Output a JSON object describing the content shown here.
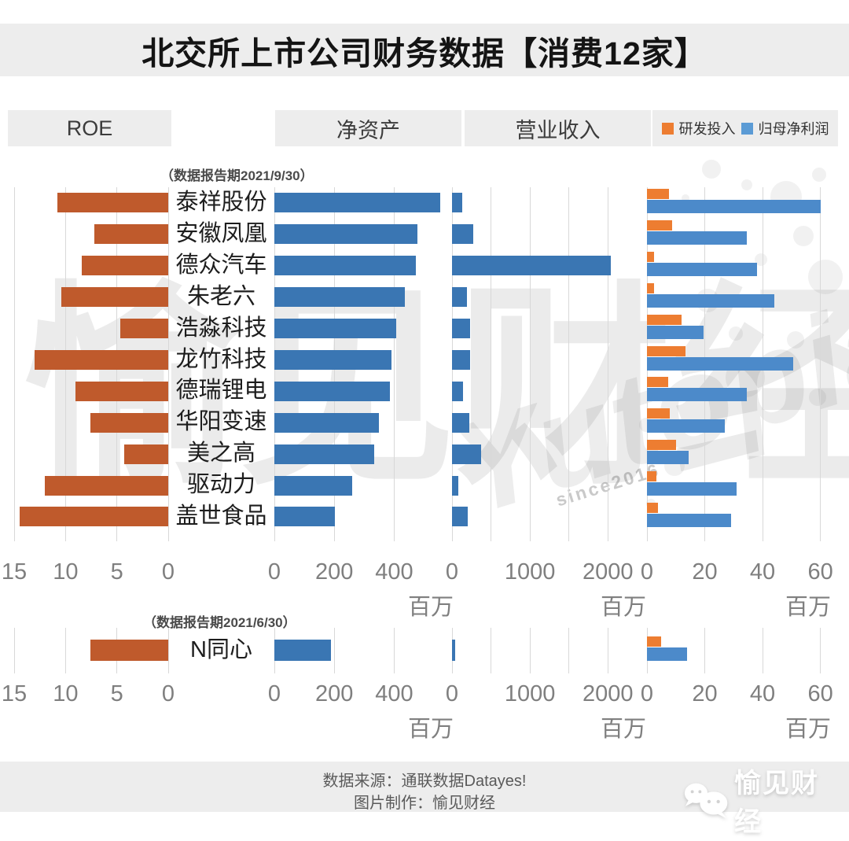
{
  "title": "北交所上市公司财务数据【消费12家】",
  "sections": {
    "roe": "ROE",
    "net_assets": "净资产",
    "revenue": "营业收入"
  },
  "legend": [
    {
      "label": "研发投入",
      "color": "#ed7d31"
    },
    {
      "label": "归母净利润",
      "color": "#5b9bd5"
    }
  ],
  "periods": {
    "main": "（数据报告期2021/9/30）",
    "secondary": "（数据报告期2021/6/30）"
  },
  "unit_label": "百万",
  "footer": {
    "line1": "数据来源：通联数据Datayes!",
    "line2": "图片制作：愉见财经"
  },
  "logo": {
    "text": "愉见财经",
    "icon": "wechat-chat-bubbles-icon"
  },
  "watermark": {
    "cn": "愉见财经",
    "en": "Yutopia",
    "since": "since2016"
  },
  "chart_data": {
    "type": "bar",
    "orientation": "horizontal",
    "unit": "百万",
    "grid": true,
    "panels": [
      {
        "id": "roe",
        "title": "ROE",
        "ticks": [
          15,
          10,
          5,
          0
        ],
        "grid_ticks": [
          15,
          10,
          5,
          0
        ],
        "reversed": true,
        "axis_max": 15
      },
      {
        "id": "net_assets",
        "title": "净资产",
        "ticks": [
          0,
          200,
          400
        ],
        "grid_ticks": [
          0,
          200,
          400
        ],
        "reversed": false,
        "axis_max": 580
      },
      {
        "id": "revenue",
        "title": "营业收入",
        "ticks": [
          0,
          1000,
          2000
        ],
        "grid_ticks": [
          0,
          500,
          1000,
          1500,
          2000
        ],
        "reversed": false,
        "axis_max": 2270
      },
      {
        "id": "rd_profit",
        "title": "研发投入 / 归母净利润",
        "ticks": [
          0,
          20,
          40,
          60
        ],
        "grid_ticks": [
          0,
          20,
          40,
          60
        ],
        "reversed": false,
        "axis_max": 65
      }
    ],
    "series_colors": {
      "roe_bar": "#bf5a2c",
      "net_assets_bar": "#3a76b3",
      "revenue_bar": "#3a76b3",
      "rd_bar": "#ed7d31",
      "profit_bar": "#4c8aca"
    },
    "groups": [
      {
        "period": "（数据报告期2021/9/30）",
        "rows": [
          {
            "company": "泰祥股份",
            "roe": 10.8,
            "net_assets": 555,
            "revenue": 135,
            "rd": 7.7,
            "net_profit": 60
          },
          {
            "company": "安徽凤凰",
            "roe": 7.2,
            "net_assets": 478,
            "revenue": 275,
            "rd": 8.8,
            "net_profit": 34.5
          },
          {
            "company": "德众汽车",
            "roe": 8.4,
            "net_assets": 472,
            "revenue": 2040,
            "rd": 2.4,
            "net_profit": 38
          },
          {
            "company": "朱老六",
            "roe": 10.4,
            "net_assets": 435,
            "revenue": 187,
            "rd": 2.4,
            "net_profit": 44
          },
          {
            "company": "浩淼科技",
            "roe": 4.7,
            "net_assets": 408,
            "revenue": 237,
            "rd": 12.1,
            "net_profit": 19.5
          },
          {
            "company": "龙竹科技",
            "roe": 13.0,
            "net_assets": 390,
            "revenue": 230,
            "rd": 13.4,
            "net_profit": 50.5
          },
          {
            "company": "德瑞锂电",
            "roe": 9.0,
            "net_assets": 386,
            "revenue": 145,
            "rd": 7.4,
            "net_profit": 34.5
          },
          {
            "company": "华阳变速",
            "roe": 7.6,
            "net_assets": 350,
            "revenue": 220,
            "rd": 7.9,
            "net_profit": 27
          },
          {
            "company": "美之高",
            "roe": 4.3,
            "net_assets": 333,
            "revenue": 370,
            "rd": 10.1,
            "net_profit": 14.5
          },
          {
            "company": "驱动力",
            "roe": 12.0,
            "net_assets": 260,
            "revenue": 85,
            "rd": 3.3,
            "net_profit": 31
          },
          {
            "company": "盖世食品",
            "roe": 14.5,
            "net_assets": 203,
            "revenue": 200,
            "rd": 3.9,
            "net_profit": 29
          }
        ]
      },
      {
        "period": "（数据报告期2021/6/30）",
        "rows": [
          {
            "company": "N同心",
            "roe": 7.6,
            "net_assets": 190,
            "revenue": 40,
            "rd": 5,
            "net_profit": 14
          }
        ]
      }
    ]
  }
}
